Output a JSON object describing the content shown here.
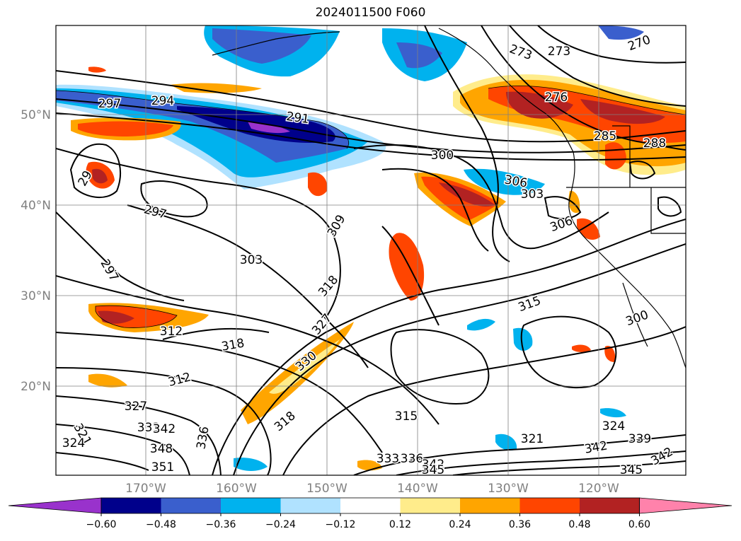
{
  "title": "2024011500 F060",
  "lat_labels": [
    "50°N",
    "40°N",
    "30°N",
    "20°N"
  ],
  "lon_labels": [
    "170°W",
    "160°W",
    "150°W",
    "140°W",
    "130°W",
    "120°W"
  ],
  "colorbar": {
    "ticks": [
      "−0.60",
      "−0.48",
      "−0.36",
      "−0.24",
      "−0.12",
      "0.12",
      "0.24",
      "0.36",
      "0.48",
      "0.60"
    ],
    "colors": [
      "#9932cc",
      "#00008b",
      "#3a5fcd",
      "#00b2ee",
      "#b0e2ff",
      "#ffffff",
      "#ffec8b",
      "#ffa500",
      "#ff4500",
      "#b22222",
      "#ff82ab"
    ]
  },
  "contour_labels": [
    "297",
    "294",
    "291",
    "300",
    "306",
    "303",
    "309",
    "318",
    "303",
    "297",
    "297",
    "312",
    "318",
    "312",
    "327",
    "321",
    "324",
    "333",
    "342",
    "348",
    "351",
    "315",
    "318",
    "321",
    "333",
    "336",
    "342",
    "345",
    "324",
    "339",
    "342",
    "345",
    "342",
    "315",
    "300",
    "273",
    "273",
    "270",
    "276",
    "285",
    "288",
    "29",
    "327",
    "330",
    "336",
    "306"
  ]
}
